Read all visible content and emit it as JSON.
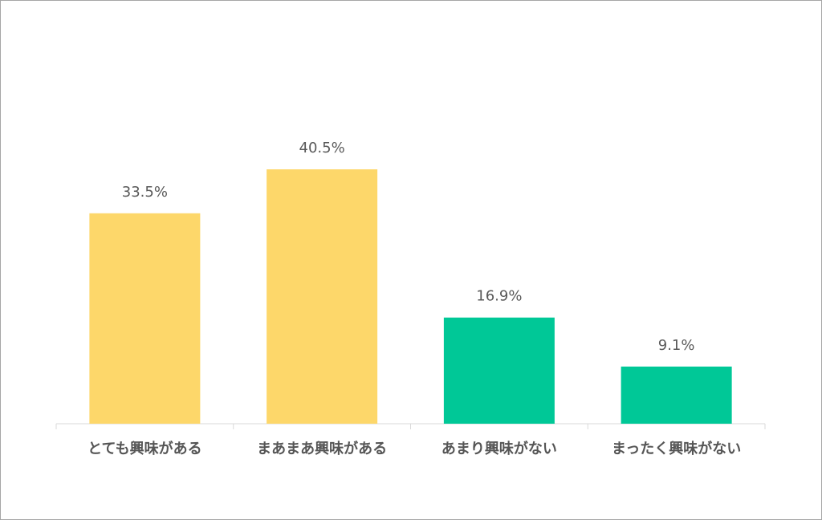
{
  "chart_data": {
    "type": "bar",
    "categories": [
      "とても興味がある",
      "まあまあ興味がある",
      "あまり興味がない",
      "まったく興味がない"
    ],
    "values": [
      33.5,
      40.5,
      16.9,
      9.1
    ],
    "value_labels": [
      "33.5%",
      "40.5%",
      "16.9%",
      "9.1%"
    ],
    "colors": [
      "#FDD76A",
      "#FDD76A",
      "#00C897",
      "#00C897"
    ]
  }
}
